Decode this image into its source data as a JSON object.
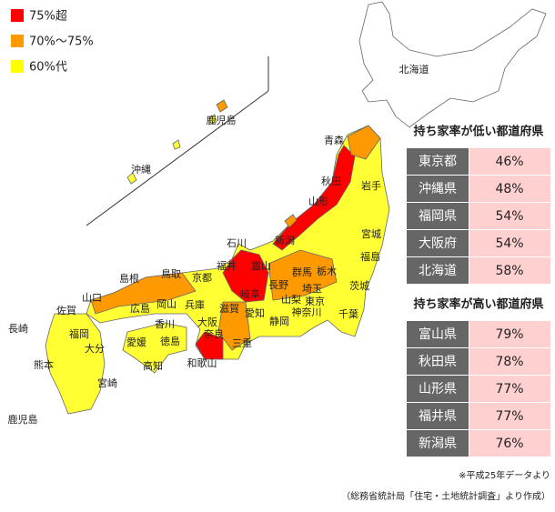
{
  "legend": [
    {
      "label": "75%超",
      "color": "#ff0000"
    },
    {
      "label": "70%～75%",
      "color": "#ff9900"
    },
    {
      "label": "60%代",
      "color": "#ffff00"
    }
  ],
  "map_labels": [
    "北海道",
    "鹿児島",
    "沖縄",
    "青森",
    "秋田",
    "岩手",
    "山形",
    "宮城",
    "石川",
    "新潟",
    "福島",
    "福井",
    "富山",
    "鳥取",
    "京都",
    "群馬",
    "栃木",
    "島根",
    "茨城",
    "長野",
    "埼玉",
    "岐阜",
    "山口",
    "岡山",
    "兵庫",
    "山梨",
    "東京",
    "佐賀",
    "広島",
    "滋賀",
    "神奈川",
    "千葉",
    "愛知",
    "長崎",
    "福岡",
    "香川",
    "大阪",
    "静岡",
    "奈良",
    "徳島",
    "愛媛",
    "大分",
    "三重",
    "熊本",
    "高知",
    "和歌山",
    "宮崎",
    "鹿児島"
  ],
  "low_table": {
    "title": "持ち家率が低い都道府県",
    "rows": [
      [
        "東京都",
        "46%"
      ],
      [
        "沖縄県",
        "48%"
      ],
      [
        "福岡県",
        "54%"
      ],
      [
        "大阪府",
        "54%"
      ],
      [
        "北海道",
        "58%"
      ]
    ]
  },
  "high_table": {
    "title": "持ち家率が高い都道府県",
    "rows": [
      [
        "富山県",
        "79%"
      ],
      [
        "秋田県",
        "78%"
      ],
      [
        "山形県",
        "77%"
      ],
      [
        "福井県",
        "77%"
      ],
      [
        "新潟県",
        "76%"
      ]
    ]
  },
  "footnote": [
    "※平成25年データより",
    "（総務省統計局「住宅・土地統計調査」より作成）"
  ]
}
